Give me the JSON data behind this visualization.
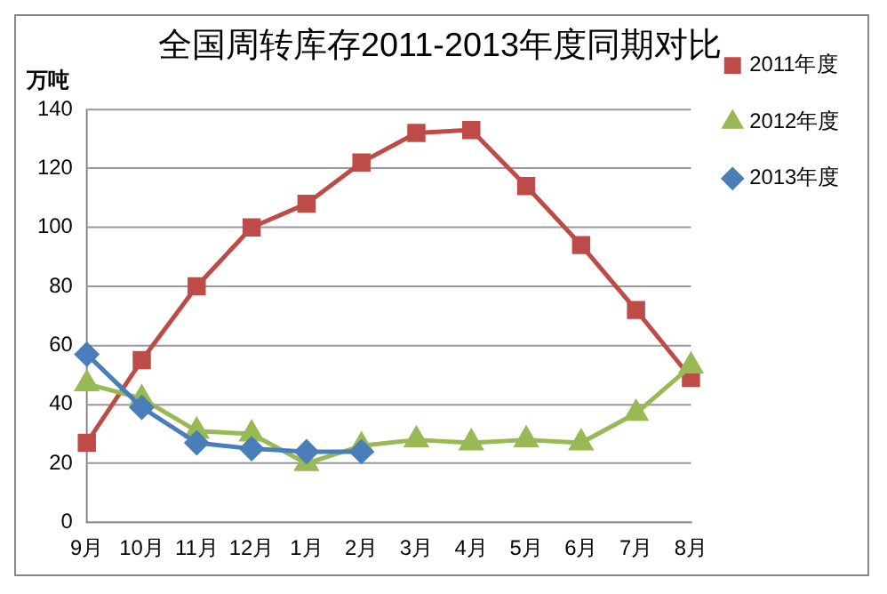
{
  "chart_data": {
    "type": "line",
    "title": "全国周转库存2011-2013年度同期对比",
    "ylabel": "万吨",
    "categories": [
      "9月",
      "10月",
      "11月",
      "12月",
      "1月",
      "2月",
      "3月",
      "4月",
      "5月",
      "6月",
      "7月",
      "8月"
    ],
    "series": [
      {
        "name": "2011年度",
        "color": "#be4b48",
        "marker": "square",
        "values": [
          27,
          55,
          80,
          100,
          108,
          122,
          132,
          133,
          114,
          94,
          72,
          49
        ]
      },
      {
        "name": "2012年度",
        "color": "#98b954",
        "marker": "triangle",
        "values": [
          47,
          42,
          31,
          30,
          20,
          26,
          28,
          27,
          28,
          27,
          37,
          53
        ]
      },
      {
        "name": "2013年度",
        "color": "#4a7ebb",
        "marker": "diamond",
        "values": [
          57,
          39,
          27,
          25,
          24,
          24,
          null,
          null,
          null,
          null,
          null,
          null
        ]
      }
    ],
    "ylim": [
      0,
      140
    ],
    "yticks": [
      0,
      20,
      40,
      60,
      80,
      100,
      120,
      140
    ],
    "grid": "y",
    "legend": "top right"
  }
}
